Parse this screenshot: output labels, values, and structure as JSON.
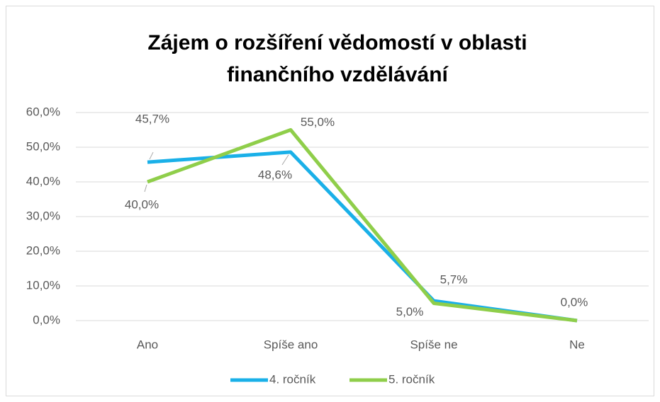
{
  "chart_data": {
    "type": "line",
    "title": [
      "Zájem o rozšíření vědomostí v oblasti",
      "finančního vzdělávání"
    ],
    "categories": [
      "Ano",
      "Spíše ano",
      "Spíše ne",
      "Ne"
    ],
    "series": [
      {
        "name": "4. ročník",
        "color": "#1ab0e8",
        "values": [
          45.7,
          48.6,
          5.7,
          0
        ],
        "value_labels": [
          "45,7%",
          "48,6%",
          "5,7%",
          "0,0%"
        ]
      },
      {
        "name": "5. ročník",
        "color": "#8fce4a",
        "values": [
          40,
          55,
          5,
          0
        ],
        "value_labels": [
          "40,0%",
          "55,0%",
          "5,0%",
          null
        ]
      }
    ],
    "ylim": [
      0,
      60
    ],
    "yticks": [
      {
        "value": 0,
        "label": "0,0%"
      },
      {
        "value": 10,
        "label": "10,0%"
      },
      {
        "value": 20,
        "label": "20,0%"
      },
      {
        "value": 30,
        "label": "30,0%"
      },
      {
        "value": 40,
        "label": "40,0%"
      },
      {
        "value": 50,
        "label": "50,0%"
      },
      {
        "value": 60,
        "label": "60,0%"
      }
    ],
    "grid": true,
    "legend": "bottom"
  }
}
